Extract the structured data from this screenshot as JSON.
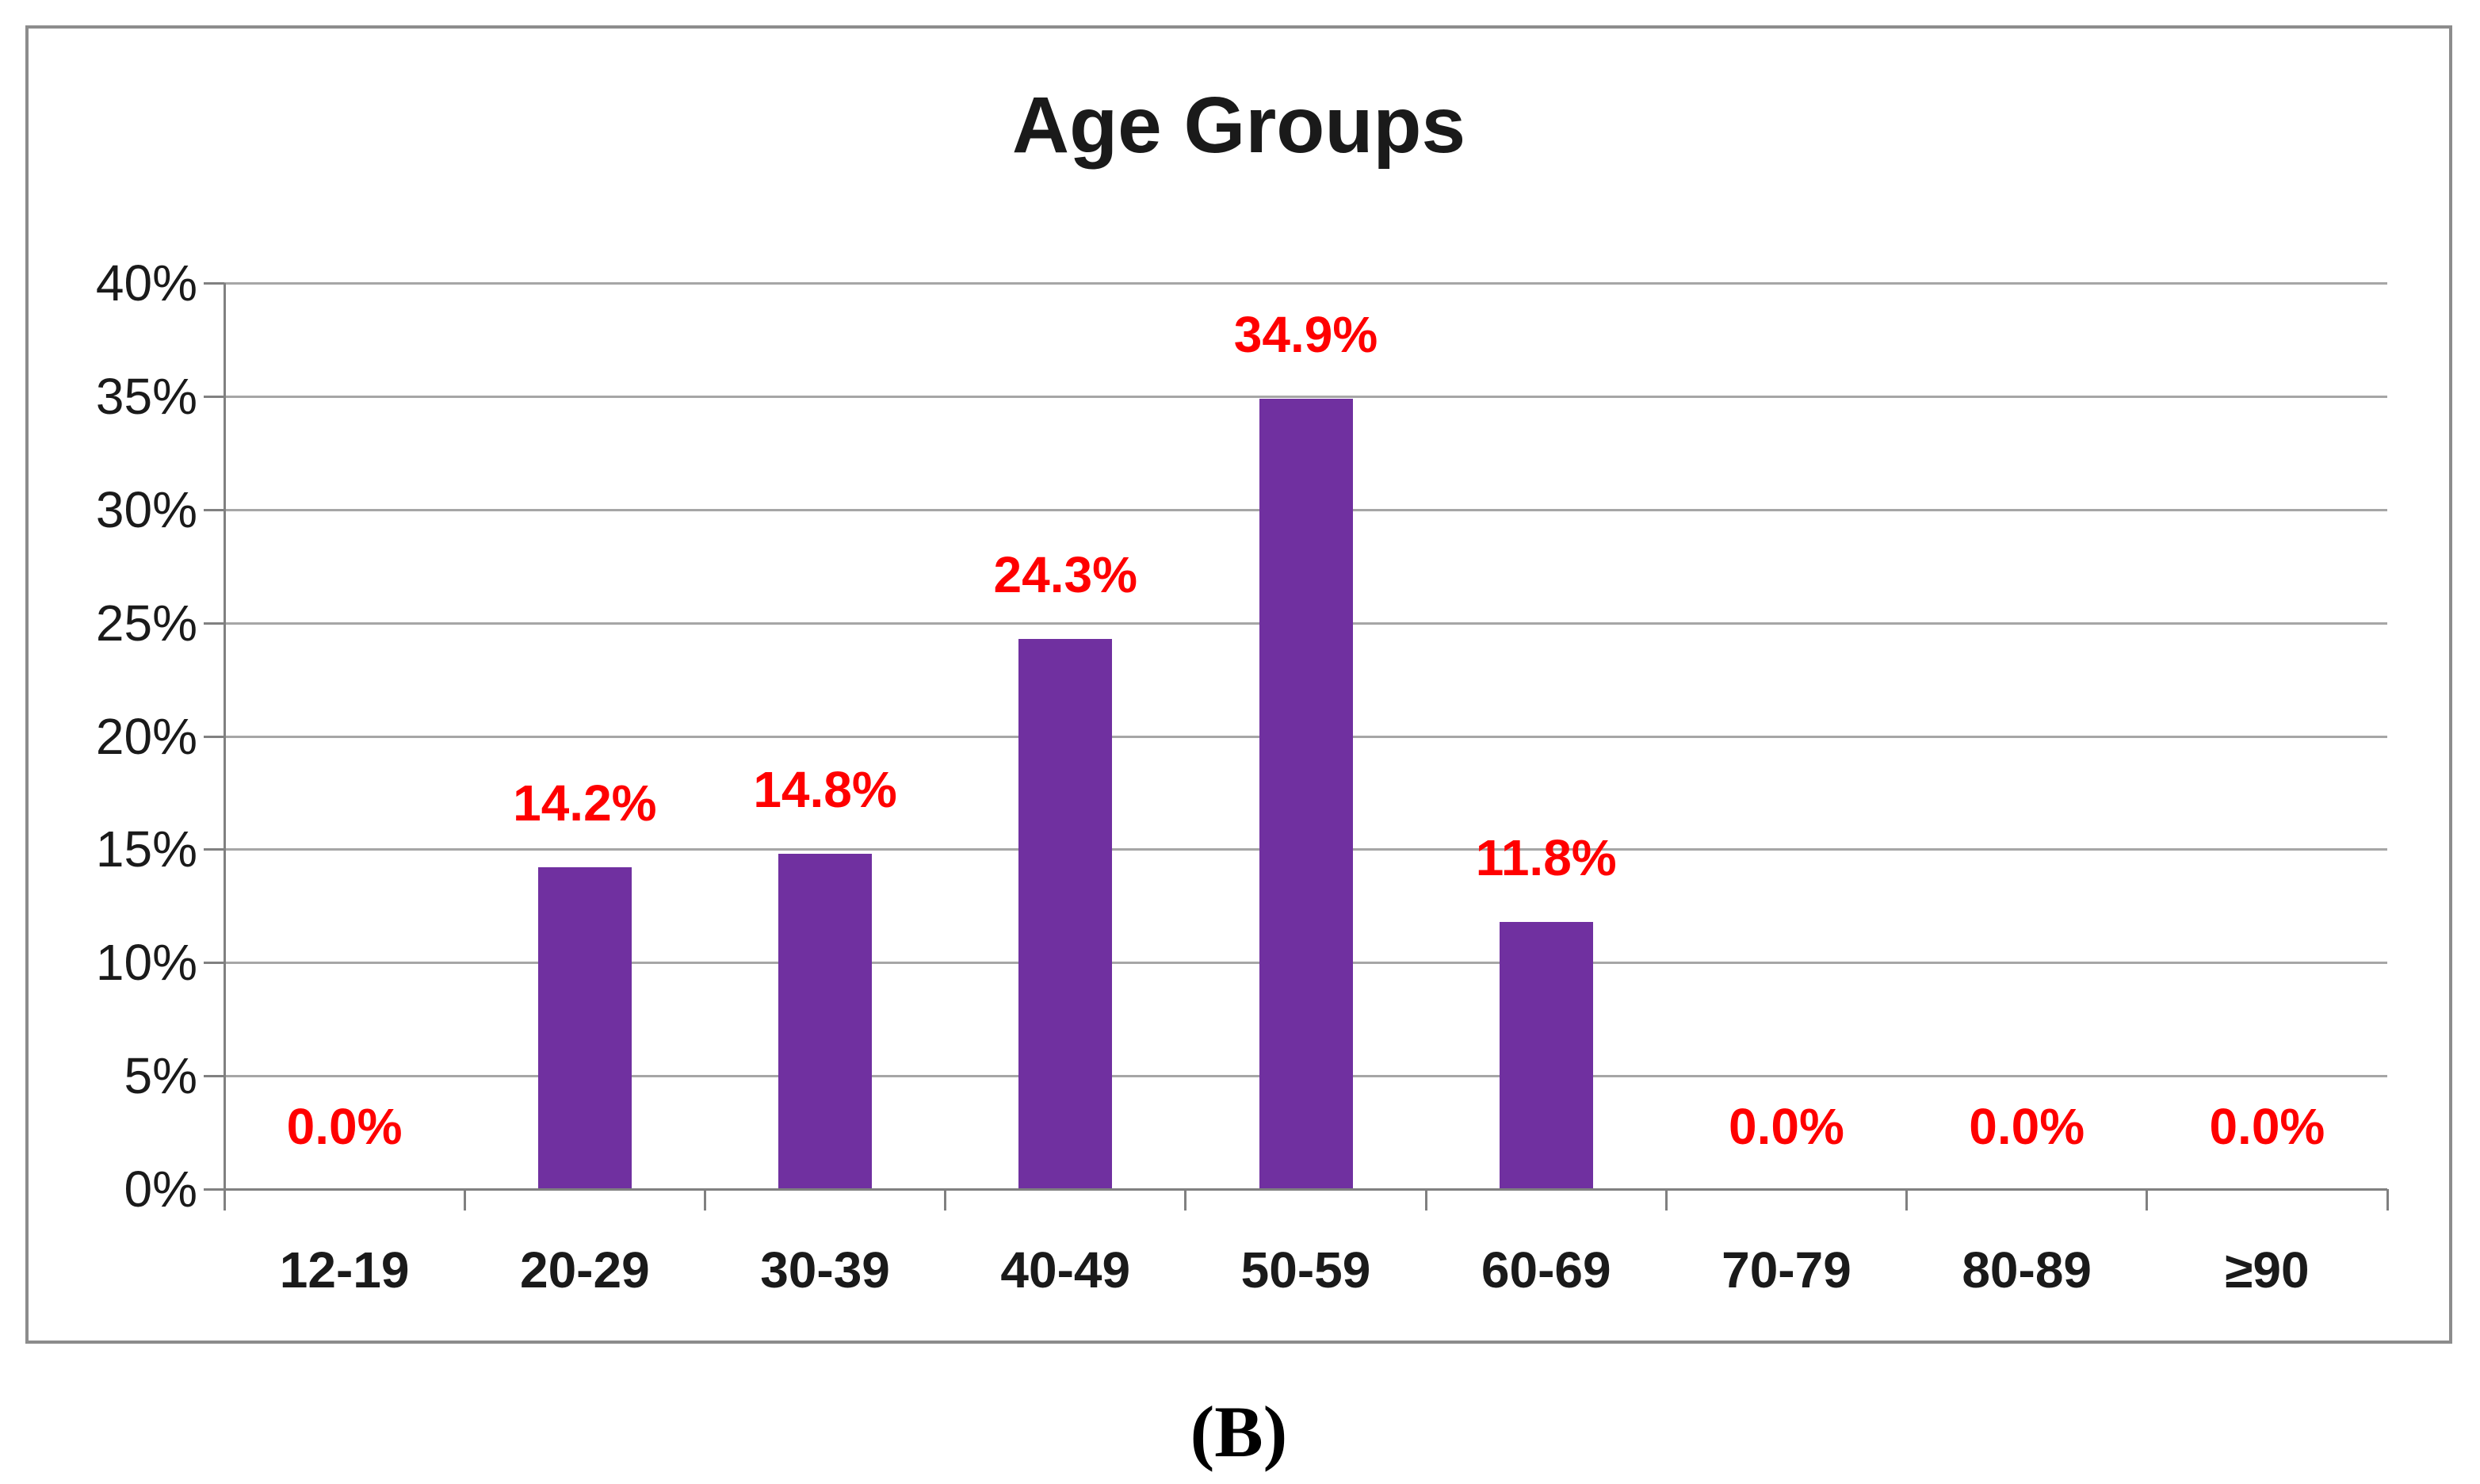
{
  "figure": {
    "caption": "(B)"
  },
  "chart_data": {
    "type": "bar",
    "title": "Age Groups",
    "categories": [
      "12-19",
      "20-29",
      "30-39",
      "40-49",
      "50-59",
      "60-69",
      "70-79",
      "80-89",
      "≥90"
    ],
    "values": [
      0.0,
      14.2,
      14.8,
      24.3,
      34.9,
      11.8,
      0.0,
      0.0,
      0.0
    ],
    "data_labels": [
      "0.0%",
      "14.2%",
      "14.8%",
      "24.3%",
      "34.9%",
      "11.8%",
      "0.0%",
      "0.0%",
      "0.0%"
    ],
    "y_tick_labels": [
      "0%",
      "5%",
      "10%",
      "15%",
      "20%",
      "25%",
      "30%",
      "35%",
      "40%"
    ],
    "ylim": [
      0,
      40
    ],
    "y_step": 5,
    "xlabel": "",
    "ylabel": "",
    "grid": true,
    "legend": false,
    "colors": {
      "bar": "#7030A0",
      "data_label": "#FF0000",
      "gridline": "#A6A6A6",
      "axis": "#808080",
      "frame_border": "#8C8C8C",
      "title_text": "#1A1A1A",
      "tick_text": "#1A1A1A"
    }
  }
}
